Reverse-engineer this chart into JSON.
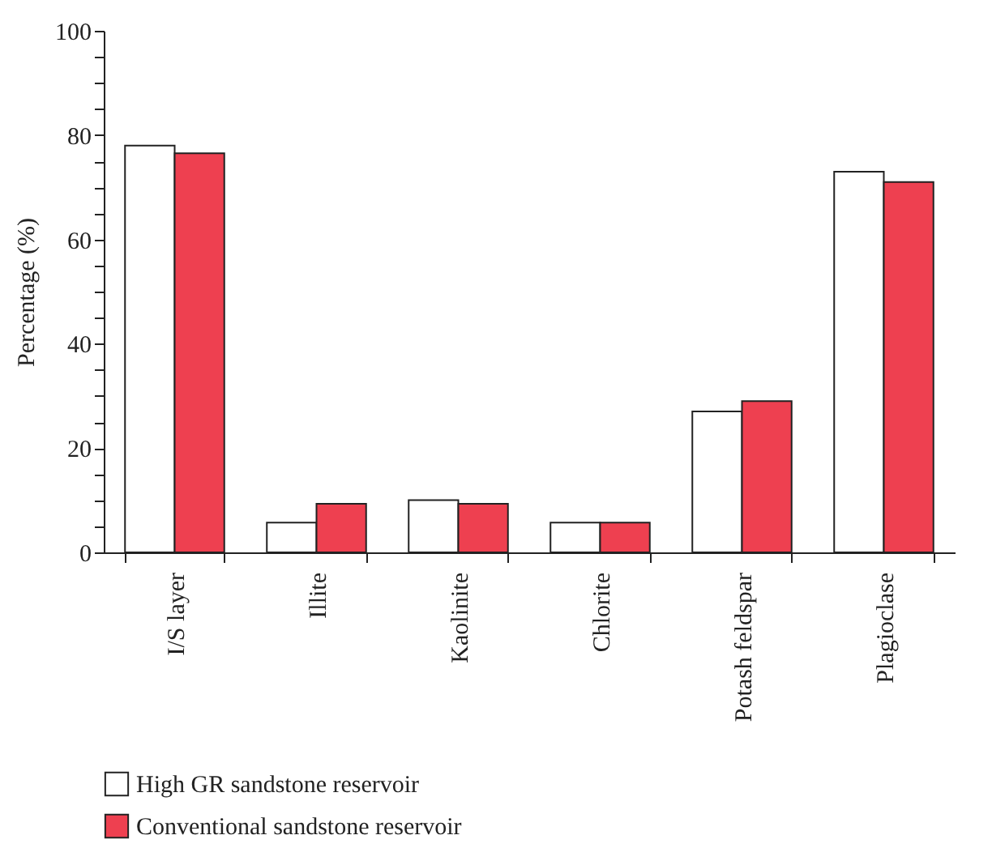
{
  "chart_data": {
    "type": "bar",
    "ylabel": "Percentage (%)",
    "categories": [
      "I/S layer",
      "Illite",
      "Kaolinite",
      "Chlorite",
      "Potash feldspar",
      "Plagioclase"
    ],
    "series": [
      {
        "name": "High GR sandstone reservoir",
        "color": "#ffffff",
        "values": [
          78,
          5.7,
          10,
          5.7,
          27,
          73
        ]
      },
      {
        "name": "Conventional sandstone reservoir",
        "color": "#ee4050",
        "values": [
          76.5,
          9.3,
          9.3,
          5.7,
          29,
          71
        ]
      }
    ],
    "ylim": [
      0,
      100
    ],
    "yticks": [
      0,
      {
        "value": 5,
        "label": null
      },
      {
        "value": 10,
        "label": null
      },
      {
        "value": 15,
        "label": null
      },
      20,
      {
        "value": 25,
        "label": null
      },
      {
        "value": 30,
        "label": null
      },
      {
        "value": 35,
        "label": null
      },
      40,
      {
        "value": 45,
        "label": null
      },
      {
        "value": 50,
        "label": null
      },
      {
        "value": 55,
        "label": null
      },
      60,
      {
        "value": 65,
        "label": null
      },
      {
        "value": 70,
        "label": null
      },
      {
        "value": 75,
        "label": null
      },
      80,
      {
        "value": 85,
        "label": null
      },
      {
        "value": 90,
        "label": null
      },
      {
        "value": 95,
        "label": null
      },
      100
    ],
    "grid": false,
    "legend": "bottom"
  }
}
